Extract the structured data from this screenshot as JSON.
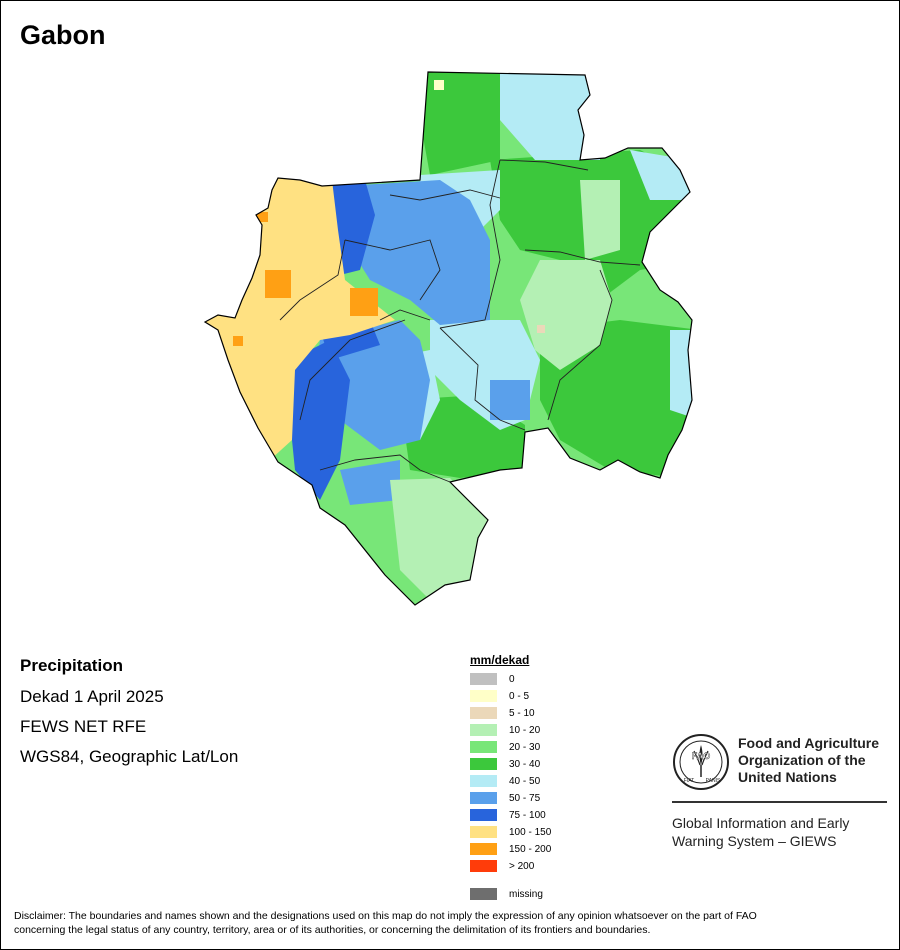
{
  "map": {
    "title": "Gabon"
  },
  "info": {
    "title": "Precipitation",
    "period": "Dekad 1 April 2025",
    "source": "FEWS NET RFE",
    "projection": "WGS84, Geographic Lat/Lon"
  },
  "legend": {
    "title": "mm/dekad",
    "items": [
      {
        "label": "0",
        "color": "#c0c0c0"
      },
      {
        "label": "0 - 5",
        "color": "#ffffc8"
      },
      {
        "label": "5 - 10",
        "color": "#ebd8b9"
      },
      {
        "label": "10 - 20",
        "color": "#b4f0b4"
      },
      {
        "label": "20 - 30",
        "color": "#78e678"
      },
      {
        "label": "30 - 40",
        "color": "#3cc83c"
      },
      {
        "label": "40 - 50",
        "color": "#b4ebf5"
      },
      {
        "label": "50 - 75",
        "color": "#5aa0eb"
      },
      {
        "label": "75 - 100",
        "color": "#2864dc"
      },
      {
        "label": "100 - 150",
        "color": "#ffe182"
      },
      {
        "label": "150 - 200",
        "color": "#ffa014"
      },
      {
        "label": "> 200",
        "color": "#ff3c0a"
      },
      {
        "label": "missing",
        "color": "#6e6e6e"
      }
    ]
  },
  "organization": {
    "name_line1": "Food and Agriculture",
    "name_line2": "Organization of the",
    "name_line3": "United Nations",
    "logo_text": "FAO",
    "logo_motto_left": "FIAT",
    "logo_motto_right": "PANIS",
    "system_line1": "Global Information and Early",
    "system_line2": "Warning System – GIEWS"
  },
  "disclaimer": {
    "line1": "Disclaimer: The boundaries and names shown and the designations used on this map do not imply the expression of any opinion whatsoever on the part of FAO",
    "line2": "concerning the legal status of any country, territory, area or of its authorities, or concerning the delimitation of its frontiers and boundaries."
  }
}
